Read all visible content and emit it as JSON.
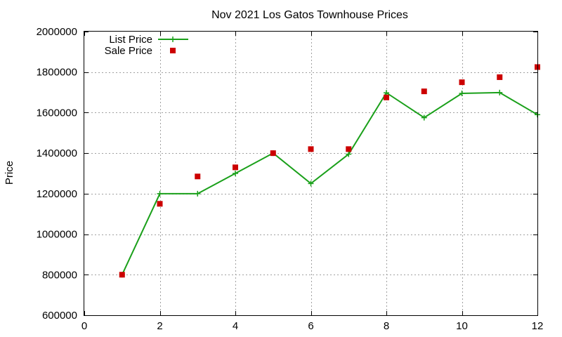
{
  "chart_data": {
    "type": "line",
    "title": "Nov 2021 Los Gatos Townhouse Prices",
    "xlabel": "",
    "ylabel": "Price",
    "xlim": [
      0,
      12
    ],
    "ylim": [
      600000,
      2000000
    ],
    "xticks": [
      0,
      2,
      4,
      6,
      8,
      10,
      12
    ],
    "yticks": [
      600000,
      800000,
      1000000,
      1200000,
      1400000,
      1600000,
      1800000,
      2000000
    ],
    "grid": true,
    "legend_position": "top-left",
    "series": [
      {
        "name": "List Price",
        "style": "line-with-plus-markers",
        "color": "#1aa01a",
        "x": [
          1,
          2,
          3,
          4,
          5,
          6,
          7,
          8,
          9,
          10,
          11,
          12
        ],
        "y": [
          800000,
          1200000,
          1200000,
          1300000,
          1400000,
          1250000,
          1395000,
          1698000,
          1575000,
          1695000,
          1699000,
          1590000
        ]
      },
      {
        "name": "Sale Price",
        "style": "square-markers",
        "color": "#cc0000",
        "x": [
          1,
          2,
          3,
          4,
          5,
          6,
          7,
          8,
          9,
          10,
          11,
          12
        ],
        "y": [
          800000,
          1150000,
          1285000,
          1330000,
          1400000,
          1420000,
          1420000,
          1675000,
          1705000,
          1750000,
          1775000,
          1825000
        ]
      }
    ]
  }
}
